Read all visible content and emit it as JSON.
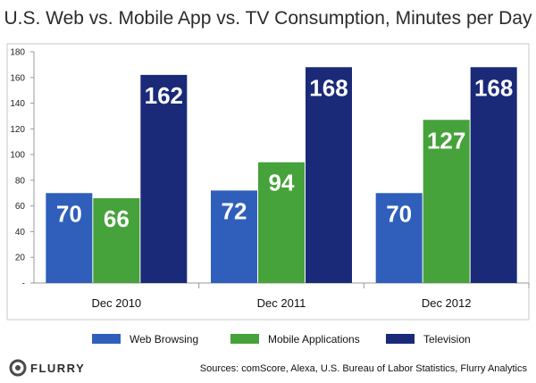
{
  "chart_data": {
    "type": "bar",
    "title": "U.S. Web vs. Mobile App vs. TV Consumption, Minutes per Day",
    "categories": [
      "Dec 2010",
      "Dec 2011",
      "Dec 2012"
    ],
    "series": [
      {
        "name": "Web Browsing",
        "values": [
          70,
          72,
          70
        ],
        "color": "#2f5fba"
      },
      {
        "name": "Mobile Applications",
        "values": [
          66,
          94,
          127
        ],
        "color": "#46a23a"
      },
      {
        "name": "Television",
        "values": [
          162,
          168,
          168
        ],
        "color": "#1a2a78"
      }
    ],
    "y_ticks": [
      "-",
      "20",
      "40",
      "60",
      "80",
      "100",
      "120",
      "140",
      "160",
      "180"
    ],
    "ylim": [
      0,
      180
    ],
    "grid": false,
    "legend_position": "bottom"
  },
  "footer": {
    "logo_text": "FLURRY",
    "sources": "Sources: comScore, Alexa, U.S. Bureau of Labor Statistics, Flurry Analytics"
  },
  "colors": {
    "panel_border": "#c8c8c8",
    "axis": "#9a9a9a"
  }
}
